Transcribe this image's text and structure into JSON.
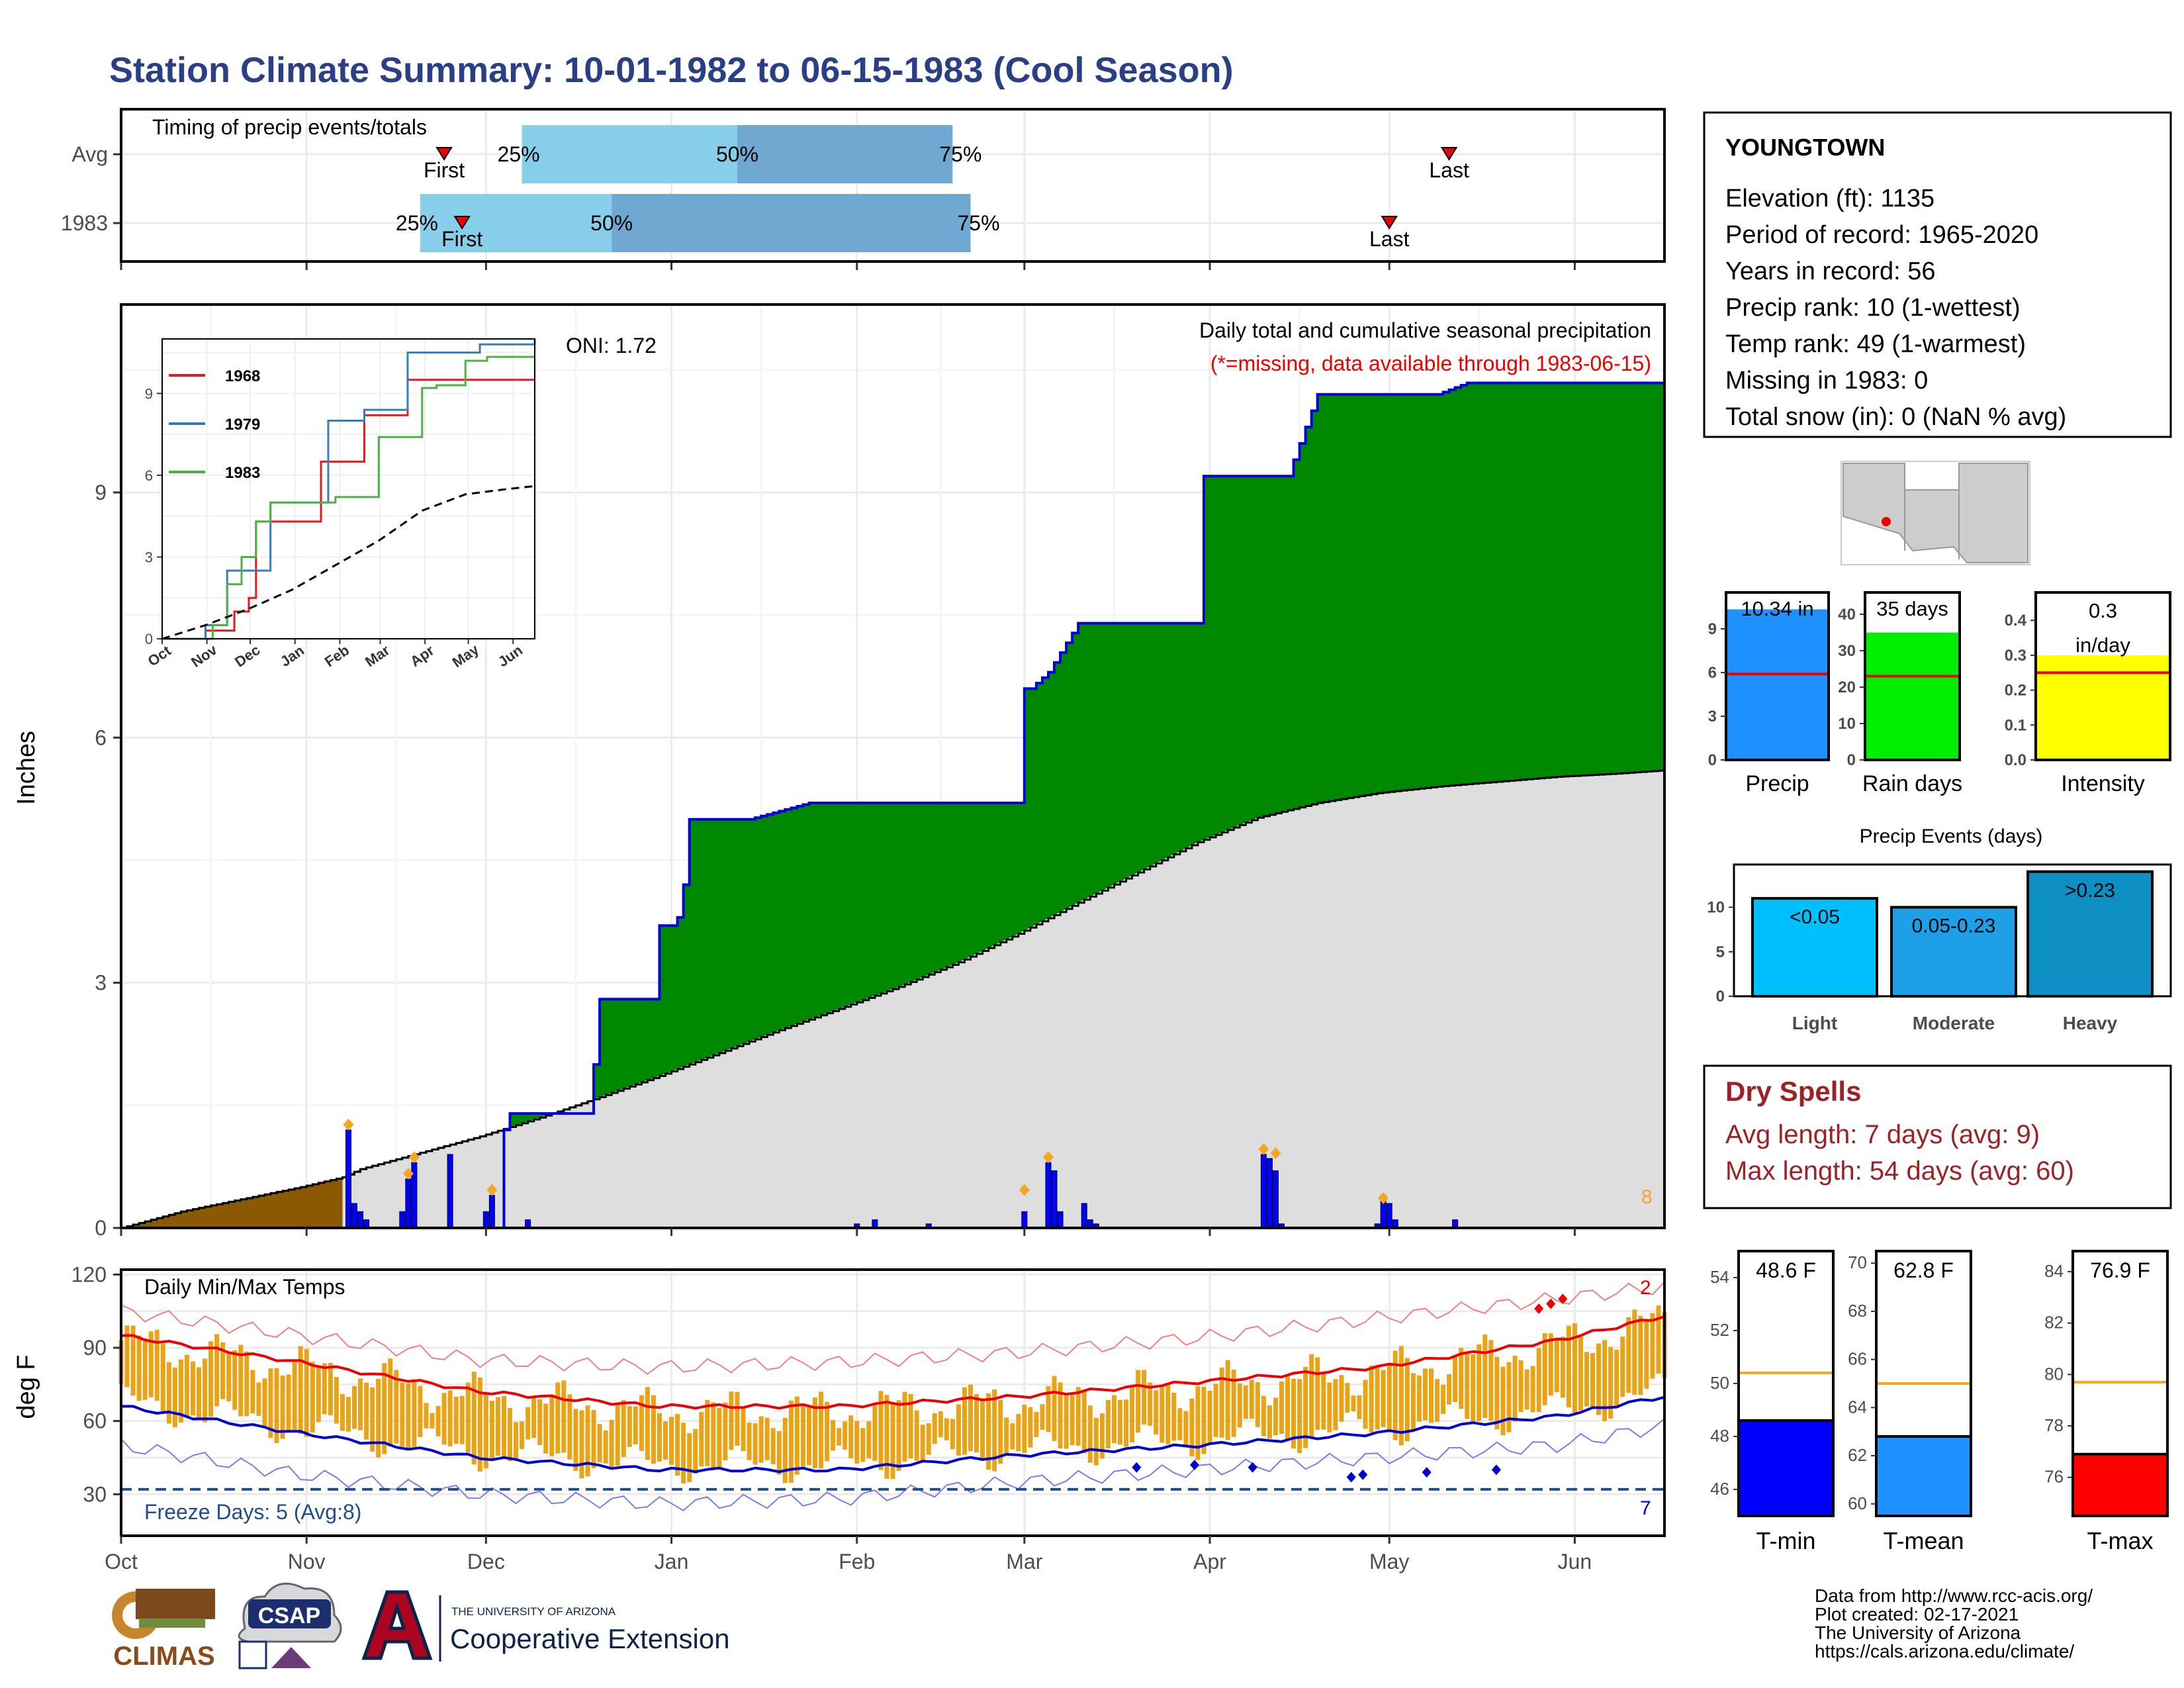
{
  "title": "Station Climate Summary: 10-01-1982 to 06-15-1983 (Cool Season)",
  "months": [
    "Oct",
    "Nov",
    "Dec",
    "Jan",
    "Feb",
    "Mar",
    "Apr",
    "May",
    "Jun"
  ],
  "colors": {
    "title": "#2b3f86",
    "green": "#008800",
    "blue_line": "#0000dd",
    "avg_fill": "#dedede",
    "brown": "#8b5a00",
    "orange": "#f5a623",
    "bar_light": "#87ceeb",
    "bar_dark": "#6fa8d0",
    "red": "#ee0000",
    "navy": "#0000cc",
    "dryspell": "#9b2226"
  },
  "timing": {
    "label": "Timing of precip events/totals",
    "rows": [
      {
        "name": "Avg",
        "first": "First",
        "last": "Last",
        "first_day": 54,
        "last_day": 222,
        "p25_day": 67,
        "p50_day": 103,
        "p75_day": 139,
        "p25": "25%",
        "p50": "50%",
        "p75": "75%"
      },
      {
        "name": "1983",
        "first": "First",
        "last": "Last",
        "first_day": 57,
        "last_day": 212,
        "p25_day": 50,
        "p50_day": 82,
        "p75_day": 142,
        "p25": "25%",
        "p50": "50%",
        "p75": "75%"
      }
    ]
  },
  "precip_panel": {
    "ylabel": "Inches",
    "yticks": [
      0,
      3,
      6,
      9
    ],
    "legend_line1": "Daily total and cumulative seasonal precipitation",
    "legend_line2": "(*=missing, data available through 1983-06-15)",
    "oni": "ONI: 1.72",
    "count_label": "8"
  },
  "inset": {
    "months": [
      "Oct",
      "Nov",
      "Dec",
      "Jan",
      "Feb",
      "Mar",
      "Apr",
      "May",
      "Jun"
    ],
    "yticks": [
      0,
      3,
      6,
      9
    ],
    "legend": [
      {
        "name": "1968",
        "color": "#e41a1c"
      },
      {
        "name": "1979",
        "color": "#377eb8"
      },
      {
        "name": "1983",
        "color": "#4daf4a"
      }
    ]
  },
  "station": {
    "name": "YOUNGTOWN",
    "lines": [
      "Elevation (ft): 1135",
      "Period of record: 1965-2020",
      "Years in record: 56",
      "Precip rank: 10 (1-wettest)",
      "Temp rank: 49 (1-warmest)",
      "Missing in 1983: 0",
      "Total snow (in): 0 (NaN % avg)"
    ]
  },
  "summary_bars": [
    {
      "name": "Precip",
      "label": "10.34 in",
      "value": 10.34,
      "avg": 5.9,
      "max": 11.5,
      "ticks": [
        0,
        3,
        6,
        9
      ],
      "color": "#1e90ff"
    },
    {
      "name": "Rain days",
      "label": "35 days",
      "value": 35,
      "avg": 23,
      "max": 46,
      "ticks": [
        0,
        10,
        20,
        30,
        40
      ],
      "color": "#00ee00"
    },
    {
      "name": "Intensity",
      "label_lines": [
        "0.3",
        "in/day"
      ],
      "value": 0.3,
      "avg": 0.25,
      "max": 0.48,
      "ticks": [
        "0.0",
        "0.1",
        "0.2",
        "0.3",
        "0.4"
      ],
      "color": "#ffff00"
    }
  ],
  "events": {
    "title": "Precip Events (days)",
    "ticks": [
      0,
      5,
      10
    ],
    "bars": [
      {
        "name": "Light",
        "label": "<0.05",
        "value": 11,
        "color": "#00bfff"
      },
      {
        "name": "Moderate",
        "label": "0.05-0.23",
        "value": 10,
        "color": "#1ea0e8"
      },
      {
        "name": "Heavy",
        "label": ">0.23",
        "value": 14,
        "color": "#0e8fc4"
      }
    ]
  },
  "dry_spells": {
    "title": "Dry Spells",
    "avg_line": "Avg length: 7 days (avg: 9)",
    "max_line": "Max length: 54 days (avg: 60)"
  },
  "temp_panel": {
    "ylabel": "deg F",
    "label": "Daily Min/Max Temps",
    "yticks": [
      30,
      60,
      90,
      120
    ],
    "freeze": "Freeze Days: 5 (Avg:8)",
    "count_top": "2",
    "count_bottom": "7"
  },
  "temp_boxes": [
    {
      "name": "T-min",
      "label": "48.6 F",
      "value": 48.6,
      "avg": 50.4,
      "ymin": 45,
      "ymax": 55,
      "ticks": [
        46,
        48,
        50,
        52,
        54
      ],
      "color": "#0000ff"
    },
    {
      "name": "T-mean",
      "label": "62.8 F",
      "value": 62.8,
      "avg": 65.0,
      "ymin": 59.5,
      "ymax": 70.5,
      "ticks": [
        60,
        62,
        64,
        66,
        68,
        70
      ],
      "color": "#1e90ff"
    },
    {
      "name": "T-max",
      "label": "76.9 F",
      "value": 76.9,
      "avg": 79.7,
      "ymin": 74.5,
      "ymax": 84.8,
      "ticks": [
        76,
        78,
        80,
        82,
        84
      ],
      "color": "#ff0000"
    }
  ],
  "logos": {
    "climas": "CLIMAS",
    "csap": "CSAP",
    "ua_small": "THE UNIVERSITY OF ARIZONA",
    "ua_big": "Cooperative Extension"
  },
  "credits": [
    "Data from http://www.rcc-acis.org/",
    "Plot created: 02-17-2021",
    "The University of Arizona",
    "https://cals.arizona.edu/climate/"
  ],
  "chart_data": [
    {
      "type": "area",
      "title": "Daily total and cumulative seasonal precipitation",
      "ylabel": "Inches",
      "ylim": [
        0,
        11.3
      ],
      "x_unit": "day of season (0 = Oct 1)",
      "series": [
        {
          "name": "1983",
          "x": [
            0,
            5,
            10,
            15,
            20,
            25,
            30,
            35,
            40,
            45,
            50,
            55,
            60,
            62,
            63,
            64,
            65,
            66,
            67,
            70,
            75,
            77,
            78,
            79,
            80,
            83,
            85,
            87,
            88,
            89,
            90,
            92,
            93,
            94,
            95,
            100,
            105,
            115,
            120,
            125,
            150,
            150,
            152,
            155,
            160,
            165,
            170,
            175,
            180,
            181,
            185,
            190,
            195,
            200,
            205,
            210,
            215,
            220,
            225,
            230,
            235,
            240,
            245,
            250,
            255,
            258
          ],
          "y": [
            0,
            0,
            0,
            0,
            0,
            0,
            0,
            0,
            0,
            0,
            0,
            0,
            0,
            0,
            0,
            1.2,
            1.4,
            1.4,
            1.4,
            1.4,
            1.4,
            1.4,
            1.4,
            2.0,
            2.8,
            2.8,
            2.8,
            2.8,
            2.8,
            2.8,
            3.7,
            3.7,
            3.8,
            4.2,
            5.0,
            5.0,
            5.0,
            5.2,
            5.2,
            5.2,
            5.2,
            6.6,
            6.6,
            6.8,
            7.4,
            7.4,
            7.4,
            7.4,
            7.4,
            9.2,
            9.2,
            9.2,
            9.2,
            10.2,
            10.2,
            10.2,
            10.2,
            10.2,
            10.34,
            10.34,
            10.34,
            10.34,
            10.34,
            10.34,
            10.34,
            10.34
          ]
        },
        {
          "name": "average",
          "x": [
            0,
            10,
            20,
            30,
            37,
            40,
            50,
            60,
            70,
            80,
            90,
            100,
            110,
            120,
            130,
            140,
            150,
            160,
            170,
            180,
            190,
            200,
            210,
            220,
            230,
            240,
            250,
            258
          ],
          "y": [
            0,
            0.2,
            0.35,
            0.5,
            0.62,
            0.72,
            0.92,
            1.12,
            1.35,
            1.6,
            1.86,
            2.14,
            2.42,
            2.68,
            2.95,
            3.25,
            3.6,
            3.98,
            4.35,
            4.72,
            5.02,
            5.2,
            5.32,
            5.4,
            5.46,
            5.52,
            5.56,
            5.6
          ]
        }
      ],
      "daily": {
        "x": [
          38,
          39,
          40,
          41,
          47,
          48,
          49,
          55,
          61,
          62,
          68,
          123,
          126,
          135,
          151,
          155,
          156,
          157,
          161,
          162,
          163,
          191,
          192,
          193,
          194,
          210,
          211,
          212,
          213,
          223
        ],
        "y": [
          1.2,
          0.3,
          0.2,
          0.1,
          0.2,
          0.6,
          0.8,
          0.9,
          0.2,
          0.4,
          0.1,
          0.05,
          0.1,
          0.05,
          0.2,
          0.8,
          0.7,
          0.2,
          0.3,
          0.1,
          0.05,
          0.9,
          0.85,
          0.7,
          0.05,
          0.05,
          0.4,
          0.3,
          0.1,
          0.1
        ]
      }
    },
    {
      "type": "line",
      "title": "",
      "xlabel": "",
      "ylim": [
        0,
        11
      ],
      "categories": [
        "Oct",
        "Nov",
        "Dec",
        "Jan",
        "Feb",
        "Mar",
        "Apr",
        "May",
        "Jun"
      ],
      "series": [
        {
          "name": "1968",
          "x": [
            0,
            30,
            50,
            60,
            65,
            70,
            90,
            110,
            140,
            170,
            200,
            220,
            258
          ],
          "y": [
            0,
            0.3,
            1,
            1.5,
            4.3,
            4.3,
            4.3,
            6.5,
            8.2,
            9.5,
            9.5,
            9.5,
            9.5
          ]
        },
        {
          "name": "1979",
          "x": [
            0,
            30,
            45,
            60,
            75,
            90,
            115,
            140,
            170,
            200,
            220,
            258
          ],
          "y": [
            0,
            0.5,
            2.5,
            2.5,
            5,
            5,
            8,
            8.4,
            10.5,
            10.5,
            10.8,
            11
          ]
        },
        {
          "name": "1983",
          "x": [
            0,
            35,
            45,
            55,
            65,
            75,
            90,
            120,
            150,
            160,
            180,
            190,
            210,
            225,
            258
          ],
          "y": [
            0,
            0.5,
            2,
            3,
            4.3,
            5,
            5,
            5.2,
            7.4,
            7.4,
            9.2,
            9.3,
            10.2,
            10.34,
            10.34
          ]
        },
        {
          "name": "average",
          "x": [
            0,
            30,
            60,
            90,
            120,
            150,
            180,
            210,
            240,
            258
          ],
          "y": [
            0,
            0.5,
            1.1,
            1.8,
            2.7,
            3.6,
            4.7,
            5.3,
            5.5,
            5.6
          ]
        }
      ]
    },
    {
      "type": "line",
      "title": "Daily Min/Max Temps",
      "ylabel": "deg F",
      "ylim": [
        13,
        122
      ],
      "series": [
        {
          "name": "avg max",
          "x": [
            0,
            30,
            60,
            90,
            120,
            150,
            180,
            210,
            240,
            258
          ],
          "y": [
            95,
            84,
            72,
            66,
            66,
            70,
            76,
            82,
            93,
            103
          ]
        },
        {
          "name": "avg min",
          "x": [
            0,
            30,
            60,
            90,
            120,
            150,
            180,
            210,
            240,
            258
          ],
          "y": [
            66,
            55,
            45,
            40,
            40,
            46,
            50,
            55,
            62,
            70
          ]
        },
        {
          "name": "record max",
          "x": [
            0,
            30,
            60,
            90,
            120,
            150,
            180,
            210,
            240,
            258
          ],
          "y": [
            105,
            95,
            85,
            82,
            84,
            88,
            94,
            102,
            110,
            115
          ]
        },
        {
          "name": "record min",
          "x": [
            0,
            30,
            60,
            90,
            120,
            150,
            180,
            210,
            240,
            258
          ],
          "y": [
            50,
            38,
            30,
            26,
            28,
            35,
            40,
            45,
            50,
            58
          ]
        }
      ],
      "freeze_line": 32
    }
  ]
}
